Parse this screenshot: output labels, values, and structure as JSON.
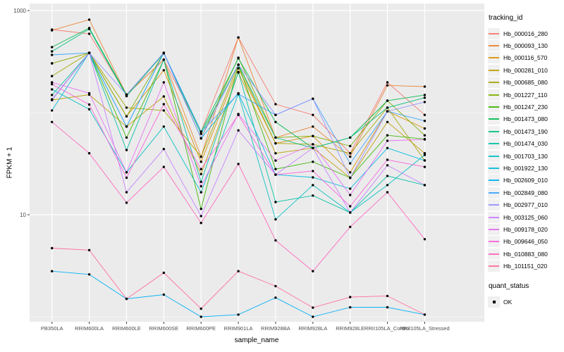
{
  "chart_data": {
    "type": "line",
    "title": "",
    "xlabel": "sample_name",
    "ylabel": "FPKM + 1",
    "y_scale": "log10",
    "ylim": [
      0.9,
      1150
    ],
    "y_ticks": [
      1000,
      10
    ],
    "grid": {
      "major_y": [
        1000,
        10
      ],
      "minor_y": [
        100,
        1
      ],
      "vertical_major": true
    },
    "legend_title": "tracking_id",
    "legend_position": "right",
    "quant_status": {
      "title": "quant_status",
      "items": [
        "OK"
      ]
    },
    "colors": {
      "panel_bg": "#EBEBEB",
      "gridline": "#FFFFFF",
      "point": "#000000",
      "axis_text": "#4D4D4D",
      "tick_mark": "#333333",
      "legend_key_bg": "#F0F0F0"
    },
    "categories": [
      "PB350LA",
      "RRIM600LA",
      "RRIM600LE",
      "RRIM600SE",
      "RRIM600PE",
      "RRIM901LA",
      "RRIM928BA",
      "RRIM928LA",
      "RRIM928LE",
      "RRII105LA_Control",
      "RRII105LA_Stressed"
    ],
    "series": [
      {
        "name": "Hb_000016_280",
        "color": "#F8766D",
        "values": [
          651,
          592,
          150,
          330,
          65,
          545,
          121,
          95,
          40,
          198,
          95
        ]
      },
      {
        "name": "Hb_000093_130",
        "color": "#EA8331",
        "values": [
          640,
          815,
          150,
          330,
          37,
          545,
          57,
          73,
          37,
          185,
          180
        ]
      },
      {
        "name": "Hb_000116_570",
        "color": "#D89000",
        "values": [
          304,
          385,
          92,
          260,
          33,
          272,
          50,
          59,
          26,
          103,
          70
        ]
      },
      {
        "name": "Hb_000281_010",
        "color": "#C09B00",
        "values": [
          133,
          150,
          73,
          144,
          25,
          247,
          40,
          45,
          23,
          81,
          40
        ]
      },
      {
        "name": "Hb_000685_080",
        "color": "#A3A500",
        "values": [
          228,
          385,
          112,
          105,
          37,
          295,
          50,
          49,
          40,
          112,
          34
        ]
      },
      {
        "name": "Hb_001227_110",
        "color": "#7CAE00",
        "values": [
          304,
          385,
          92,
          385,
          56,
          345,
          57,
          59,
          47,
          131,
          60
        ]
      },
      {
        "name": "Hb_001247_230",
        "color": "#39B600",
        "values": [
          133,
          385,
          57,
          330,
          11.4,
          295,
          28,
          33,
          23,
          60,
          55
        ]
      },
      {
        "name": "Hb_001473_080",
        "color": "#00BB4E",
        "values": [
          438,
          675,
          150,
          385,
          65,
          340,
          81,
          45,
          57,
          131,
          149
        ]
      },
      {
        "name": "Hb_001473_190",
        "color": "#00BF7D",
        "values": [
          398,
          660,
          145,
          380,
          62,
          295,
          57,
          45,
          57,
          112,
          140
        ]
      },
      {
        "name": "Hb_001474_030",
        "color": "#00C1A3",
        "values": [
          149,
          385,
          43,
          330,
          21,
          250,
          13.3,
          15.4,
          10.5,
          24,
          19.5
        ]
      },
      {
        "name": "Hb_001703_130",
        "color": "#00BFC4",
        "values": [
          169,
          108,
          26,
          73,
          16.6,
          152,
          9,
          19.5,
          10.5,
          19.5,
          38.5
        ]
      },
      {
        "name": "Hb_001922_130",
        "color": "#00BAE0",
        "values": [
          105,
          385,
          73,
          385,
          56,
          155,
          24.7,
          23.2,
          18,
          45,
          34
        ]
      },
      {
        "name": "Hb_002609_010",
        "color": "#00B0F6",
        "values": [
          2.8,
          2.6,
          1.5,
          1.65,
          1.0,
          1.05,
          1.54,
          1.0,
          1.24,
          1.24,
          1.05
        ]
      },
      {
        "name": "Hb_002849_080",
        "color": "#35A2FF",
        "values": [
          368,
          385,
          73,
          385,
          65,
          152,
          95,
          137,
          31.8,
          103,
          83
        ]
      },
      {
        "name": "Hb_002977_010",
        "color": "#9590FF",
        "values": [
          133,
          385,
          150,
          385,
          56,
          295,
          95,
          137,
          22.9,
          103,
          127
        ]
      },
      {
        "name": "Hb_003125_060",
        "color": "#C77CFF",
        "values": [
          135,
          385,
          16.6,
          44,
          9.7,
          67,
          24.7,
          45,
          10.5,
          30.5,
          19.5
        ]
      },
      {
        "name": "Hb_009178_020",
        "color": "#E76BF3",
        "values": [
          198,
          155,
          26,
          198,
          19,
          97,
          33.9,
          49,
          15.6,
          53,
          54.6
        ]
      },
      {
        "name": "Hb_009646_050",
        "color": "#FA62DB",
        "values": [
          190,
          120,
          23,
          121,
          28,
          95,
          24.7,
          26.8,
          12.1,
          34.5,
          29.4
        ]
      },
      {
        "name": "Hb_010883_080",
        "color": "#FF62BC",
        "values": [
          81,
          40,
          13.1,
          29.4,
          8.3,
          31.4,
          5.6,
          2.8,
          7.6,
          16.6,
          5.75
        ]
      },
      {
        "name": "Hb_101151_020",
        "color": "#FF6A98",
        "values": [
          4.7,
          4.5,
          1.5,
          2.7,
          1.2,
          2.8,
          2.0,
          1.23,
          1.56,
          1.6,
          1.05
        ]
      }
    ]
  }
}
